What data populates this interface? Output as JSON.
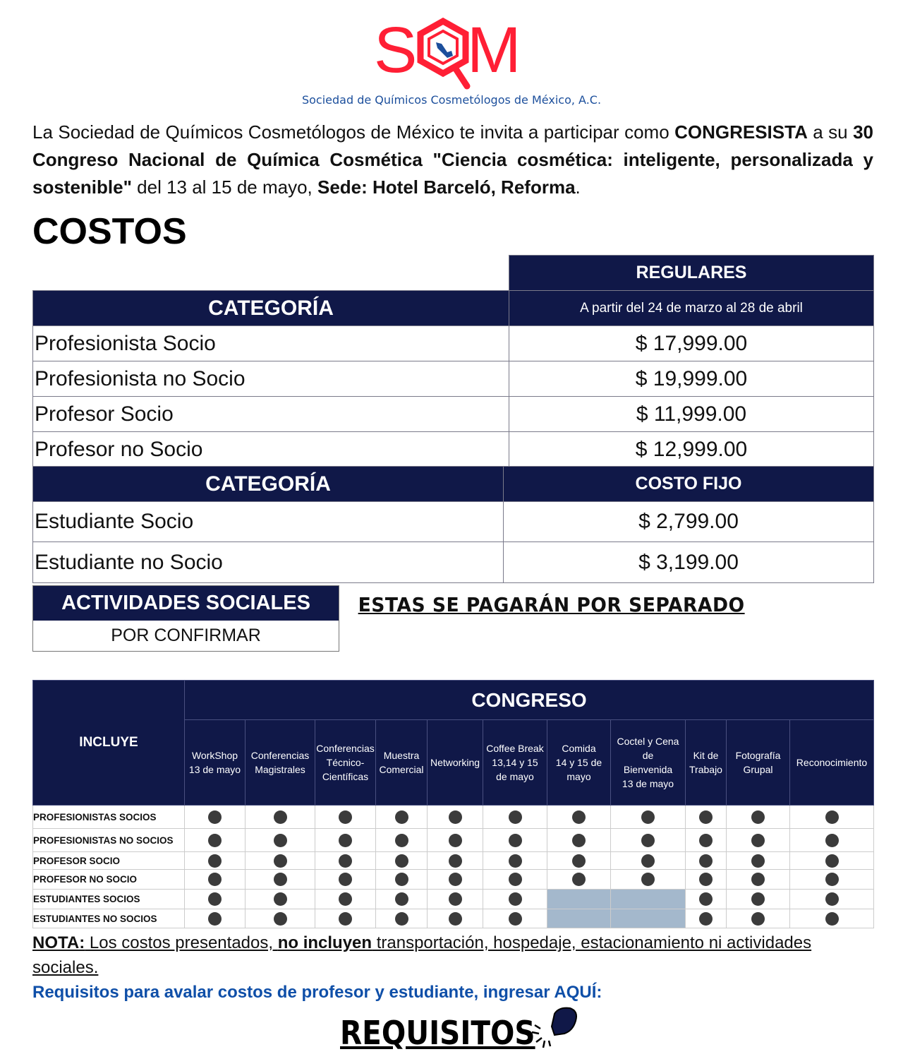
{
  "logo": {
    "text": "SQM",
    "subtitle": "Sociedad de Químicos Cosmetólogos de México, A.C.",
    "colors": {
      "red": "#ff1f35",
      "blue": "#1c4f9c"
    }
  },
  "intro": {
    "p1": "La Sociedad de Químicos Cosmetólogos de México te invita a participar como ",
    "b1": "CONGRESISTA",
    "p2": " a su ",
    "b2": "30 Congreso Nacional de Química Cosmética \"Ciencia cosmética: inteligente, personalizada y sostenible\"",
    "p3": " del 13 al 15 de mayo, ",
    "b3": "Sede: Hotel Barceló, Reforma",
    "p4": "."
  },
  "costos_title": "COSTOS",
  "regulares": {
    "header": "REGULARES",
    "cat_header": "CATEGORÍA",
    "period": "A partir del 24 de marzo al 28 de abril",
    "rows": [
      {
        "cat": "Profesionista Socio",
        "price": "$ 17,999.00"
      },
      {
        "cat": "Profesionista no Socio",
        "price": "$ 19,999.00"
      },
      {
        "cat": "Profesor Socio",
        "price": "$ 11,999.00"
      },
      {
        "cat": "Profesor no Socio",
        "price": "$ 12,999.00"
      }
    ]
  },
  "fijo": {
    "cat_header": "CATEGORÍA",
    "header": "COSTO FIJO",
    "rows": [
      {
        "cat": "Estudiante Socio",
        "price": "$ 2,799.00"
      },
      {
        "cat": "Estudiante no Socio",
        "price": "$ 3,199.00"
      }
    ]
  },
  "actividades": {
    "header": "ACTIVIDADES SOCIALES",
    "status": "POR CONFIRMAR",
    "note": "ESTAS SE PAGARÁN POR SEPARADO"
  },
  "congreso": {
    "corner": "INCLUYE",
    "header": "CONGRESO",
    "columns": [
      "WorkShop\n13 de mayo",
      "Conferencias\nMagistrales",
      "Conferencias\nTécnico-\nCientíficas",
      "Muestra\nComercial",
      "Networking",
      "Coffee Break\n13,14 y 15\nde mayo",
      "Comida\n14 y 15 de\nmayo",
      "Coctel y Cena\nde\nBienvenida\n13 de mayo",
      "Kit de\nTrabajo",
      "Fotografía\nGrupal",
      "Reconocimiento"
    ],
    "rows": [
      {
        "label": "PROFESIONISTAS SOCIOS",
        "included": [
          1,
          1,
          1,
          1,
          1,
          1,
          1,
          1,
          1,
          1,
          1
        ]
      },
      {
        "label": "PROFESIONISTAS NO SOCIOS",
        "included": [
          1,
          1,
          1,
          1,
          1,
          1,
          1,
          1,
          1,
          1,
          1
        ]
      },
      {
        "label": "PROFESOR SOCIO",
        "included": [
          1,
          1,
          1,
          1,
          1,
          1,
          1,
          1,
          1,
          1,
          1
        ]
      },
      {
        "label": "PROFESOR NO SOCIO",
        "included": [
          1,
          1,
          1,
          1,
          1,
          1,
          1,
          1,
          1,
          1,
          1
        ]
      },
      {
        "label": "ESTUDIANTES SOCIOS",
        "included": [
          1,
          1,
          1,
          1,
          1,
          1,
          0,
          0,
          1,
          1,
          1
        ]
      },
      {
        "label": "ESTUDIANTES NO SOCIOS",
        "included": [
          1,
          1,
          1,
          1,
          1,
          1,
          0,
          0,
          1,
          1,
          1
        ]
      }
    ]
  },
  "nota": {
    "label": "NOTA:",
    "t1": " Los costos presentados, ",
    "b": "no incluyen",
    "t2": " transportación, hospedaje, estacionamiento ni actividades sociales."
  },
  "requisitos": {
    "link_text": "Requisitos para avalar costos de profesor y estudiante, ingresar AQUÍ:",
    "button": "REQUISITOS",
    "icon": "pointing-hand-icon"
  }
}
